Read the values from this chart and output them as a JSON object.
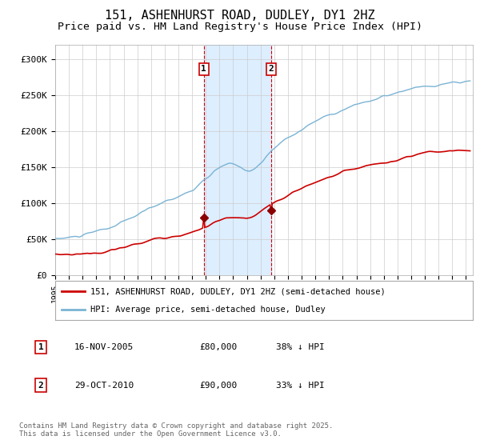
{
  "title_line1": "151, ASHENHURST ROAD, DUDLEY, DY1 2HZ",
  "title_line2": "Price paid vs. HM Land Registry's House Price Index (HPI)",
  "ylim": [
    0,
    320000
  ],
  "yticks": [
    0,
    50000,
    100000,
    150000,
    200000,
    250000,
    300000
  ],
  "ytick_labels": [
    "£0",
    "£50K",
    "£100K",
    "£150K",
    "£200K",
    "£250K",
    "£300K"
  ],
  "hpi_color": "#7ab3d4",
  "price_color": "#cc0000",
  "marker_color": "#8b0000",
  "shade_color": "#ddeeff",
  "year_start": 1995,
  "year_end": 2025,
  "marker1_year": 2005.88,
  "marker1_price": 80000,
  "marker2_year": 2010.83,
  "marker2_price": 90000,
  "legend_entry1": "151, ASHENHURST ROAD, DUDLEY, DY1 2HZ (semi-detached house)",
  "legend_entry2": "HPI: Average price, semi-detached house, Dudley",
  "table_row1": [
    "1",
    "16-NOV-2005",
    "£80,000",
    "38% ↓ HPI"
  ],
  "table_row2": [
    "2",
    "29-OCT-2010",
    "£90,000",
    "33% ↓ HPI"
  ],
  "footnote": "Contains HM Land Registry data © Crown copyright and database right 2025.\nThis data is licensed under the Open Government Licence v3.0.",
  "background_color": "#ffffff",
  "grid_color": "#cccccc"
}
